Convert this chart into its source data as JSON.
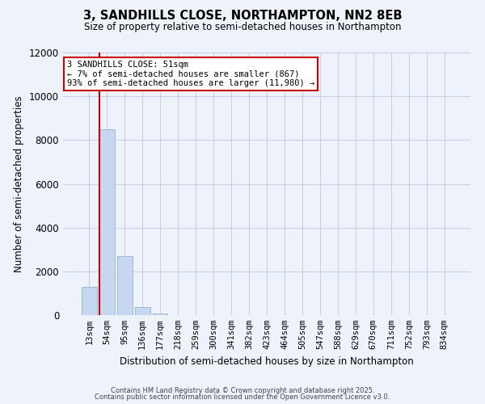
{
  "title": "3, SANDHILLS CLOSE, NORTHAMPTON, NN2 8EB",
  "subtitle": "Size of property relative to semi-detached houses in Northampton",
  "xlabel": "Distribution of semi-detached houses by size in Northampton",
  "ylabel": "Number of semi-detached properties",
  "bar_labels": [
    "13sqm",
    "54sqm",
    "95sqm",
    "136sqm",
    "177sqm",
    "218sqm",
    "259sqm",
    "300sqm",
    "341sqm",
    "382sqm",
    "423sqm",
    "464sqm",
    "505sqm",
    "547sqm",
    "588sqm",
    "629sqm",
    "670sqm",
    "711sqm",
    "752sqm",
    "793sqm",
    "834sqm"
  ],
  "bar_values": [
    1300,
    8500,
    2700,
    380,
    80,
    0,
    0,
    0,
    0,
    0,
    0,
    0,
    0,
    0,
    0,
    0,
    0,
    0,
    0,
    0,
    0
  ],
  "bar_color": "#c5d8f0",
  "bar_edge_color": "#a0b8d8",
  "annotation_title": "3 SANDHILLS CLOSE: 51sqm",
  "annotation_line1": "← 7% of semi-detached houses are smaller (867)",
  "annotation_line2": "93% of semi-detached houses are larger (11,980) →",
  "annotation_box_color": "#ffffff",
  "annotation_box_edge_color": "#cc0000",
  "property_line_color": "#cc0000",
  "ylim": [
    0,
    12000
  ],
  "yticks": [
    0,
    2000,
    4000,
    6000,
    8000,
    10000,
    12000
  ],
  "footer1": "Contains HM Land Registry data © Crown copyright and database right 2025.",
  "footer2": "Contains public sector information licensed under the Open Government Licence v3.0.",
  "bg_color": "#eef2fb",
  "grid_color": "#c8d0e8"
}
